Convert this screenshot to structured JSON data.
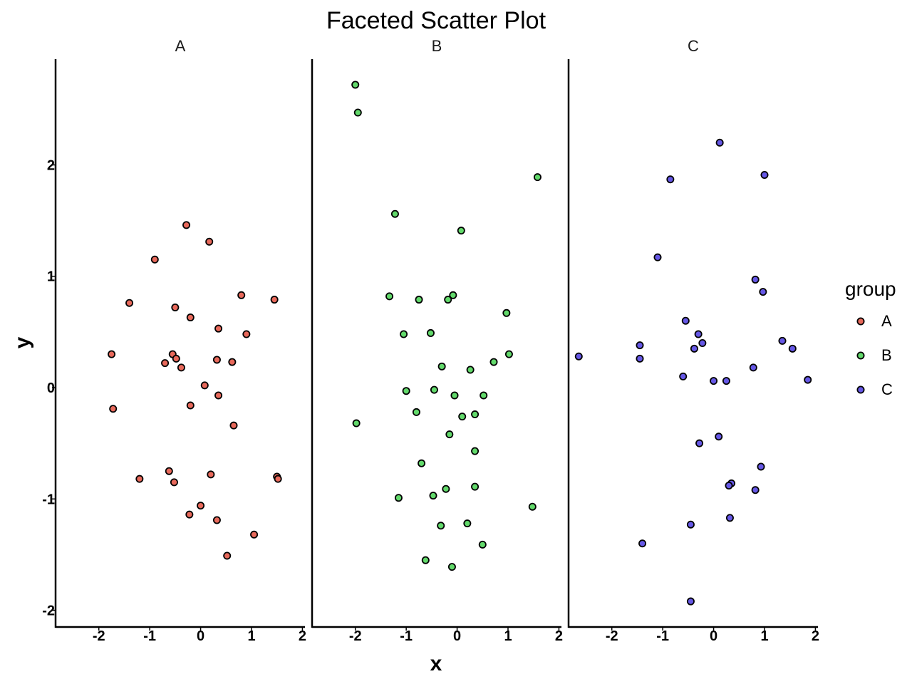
{
  "chart_data": {
    "type": "scatter",
    "title": "Faceted Scatter Plot",
    "xlabel": "x",
    "ylabel": "y",
    "facet_by": "group",
    "xlim": [
      -2.85,
      2.05
    ],
    "ylim": [
      -2.15,
      2.95
    ],
    "x_ticks": [
      -2,
      -1,
      0,
      1,
      2
    ],
    "y_ticks": [
      -2,
      -1,
      0,
      1,
      2
    ],
    "grid": false,
    "legend": {
      "title": "group",
      "placement": "right"
    },
    "series": [
      {
        "name": "A",
        "color": "#e8695b",
        "points": [
          [
            -0.28,
            1.46
          ],
          [
            0.17,
            1.31
          ],
          [
            -0.9,
            1.15
          ],
          [
            -1.4,
            0.76
          ],
          [
            -0.5,
            0.72
          ],
          [
            -0.2,
            0.63
          ],
          [
            0.8,
            0.83
          ],
          [
            1.45,
            0.79
          ],
          [
            0.35,
            0.53
          ],
          [
            0.9,
            0.48
          ],
          [
            -1.75,
            0.3
          ],
          [
            -0.55,
            0.3
          ],
          [
            -0.48,
            0.26
          ],
          [
            0.32,
            0.25
          ],
          [
            0.62,
            0.23
          ],
          [
            -0.7,
            0.22
          ],
          [
            -0.38,
            0.18
          ],
          [
            0.08,
            0.02
          ],
          [
            0.35,
            -0.07
          ],
          [
            -0.2,
            -0.16
          ],
          [
            -1.72,
            -0.19
          ],
          [
            0.65,
            -0.34
          ],
          [
            -0.62,
            -0.75
          ],
          [
            0.2,
            -0.78
          ],
          [
            1.5,
            -0.8
          ],
          [
            -1.2,
            -0.82
          ],
          [
            1.52,
            -0.82
          ],
          [
            -0.52,
            -0.85
          ],
          [
            0.0,
            -1.06
          ],
          [
            -0.22,
            -1.14
          ],
          [
            0.32,
            -1.19
          ],
          [
            1.05,
            -1.32
          ],
          [
            0.52,
            -1.51
          ]
        ]
      },
      {
        "name": "B",
        "color": "#62d96b",
        "points": [
          [
            -2.0,
            2.72
          ],
          [
            -1.95,
            2.47
          ],
          [
            1.58,
            1.89
          ],
          [
            -1.22,
            1.56
          ],
          [
            0.08,
            1.41
          ],
          [
            -1.33,
            0.82
          ],
          [
            -0.08,
            0.83
          ],
          [
            -0.75,
            0.79
          ],
          [
            -0.18,
            0.79
          ],
          [
            0.97,
            0.67
          ],
          [
            -1.05,
            0.48
          ],
          [
            -0.52,
            0.49
          ],
          [
            1.02,
            0.3
          ],
          [
            0.72,
            0.23
          ],
          [
            -0.3,
            0.19
          ],
          [
            0.26,
            0.16
          ],
          [
            -1.0,
            -0.03
          ],
          [
            -0.45,
            -0.02
          ],
          [
            -0.05,
            -0.07
          ],
          [
            0.52,
            -0.07
          ],
          [
            -0.8,
            -0.22
          ],
          [
            0.35,
            -0.24
          ],
          [
            0.1,
            -0.26
          ],
          [
            -1.98,
            -0.32
          ],
          [
            -0.15,
            -0.42
          ],
          [
            0.35,
            -0.57
          ],
          [
            -0.7,
            -0.68
          ],
          [
            0.35,
            -0.89
          ],
          [
            -0.22,
            -0.91
          ],
          [
            -0.47,
            -0.97
          ],
          [
            -1.15,
            -0.99
          ],
          [
            1.48,
            -1.07
          ],
          [
            0.2,
            -1.22
          ],
          [
            -0.32,
            -1.24
          ],
          [
            0.5,
            -1.41
          ],
          [
            -0.62,
            -1.55
          ],
          [
            -0.1,
            -1.61
          ]
        ]
      },
      {
        "name": "C",
        "color": "#6658e6",
        "points": [
          [
            0.12,
            2.2
          ],
          [
            1.0,
            1.91
          ],
          [
            -0.85,
            1.87
          ],
          [
            -1.1,
            1.17
          ],
          [
            0.82,
            0.97
          ],
          [
            0.97,
            0.86
          ],
          [
            -0.55,
            0.6
          ],
          [
            -0.3,
            0.48
          ],
          [
            -0.22,
            0.4
          ],
          [
            1.35,
            0.42
          ],
          [
            -1.45,
            0.38
          ],
          [
            -0.38,
            0.35
          ],
          [
            1.55,
            0.35
          ],
          [
            -2.65,
            0.28
          ],
          [
            -1.45,
            0.26
          ],
          [
            0.78,
            0.18
          ],
          [
            -0.6,
            0.1
          ],
          [
            0.0,
            0.06
          ],
          [
            0.25,
            0.06
          ],
          [
            1.85,
            0.07
          ],
          [
            0.1,
            -0.44
          ],
          [
            -0.28,
            -0.5
          ],
          [
            0.93,
            -0.71
          ],
          [
            0.35,
            -0.86
          ],
          [
            0.3,
            -0.88
          ],
          [
            0.82,
            -0.92
          ],
          [
            0.32,
            -1.17
          ],
          [
            -0.45,
            -1.23
          ],
          [
            -1.4,
            -1.4
          ],
          [
            -0.45,
            -1.92
          ]
        ]
      }
    ]
  }
}
